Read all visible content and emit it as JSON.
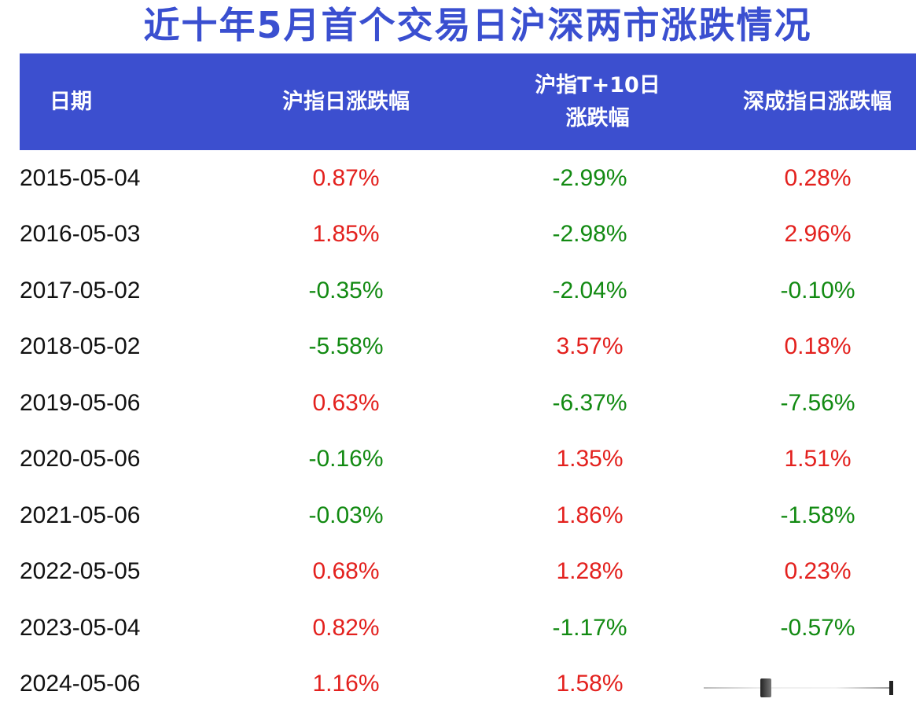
{
  "title": "近十年5月首个交易日沪深两市涨跌情况",
  "colors": {
    "header_bg": "#3c4fcf",
    "title": "#3a4fd0",
    "up": "#e3211e",
    "down": "#128a12"
  },
  "table": {
    "headers": {
      "date": "日期",
      "sh_day": "沪指日涨跌幅",
      "sh_t10_line1": "沪指T+10日",
      "sh_t10_line2": "涨跌幅",
      "sz_day": "深成指日涨跌幅"
    },
    "rows": [
      {
        "date": "2015-05-04",
        "sh": "0.87%",
        "t10": "-2.99%",
        "sz": "0.28%"
      },
      {
        "date": "2016-05-03",
        "sh": "1.85%",
        "t10": "-2.98%",
        "sz": "2.96%"
      },
      {
        "date": "2017-05-02",
        "sh": "-0.35%",
        "t10": "-2.04%",
        "sz": "-0.10%"
      },
      {
        "date": "2018-05-02",
        "sh": "-5.58%",
        "t10": "3.57%",
        "sz": "0.18%"
      },
      {
        "date": "2019-05-06",
        "sh": "0.63%",
        "t10": "-6.37%",
        "sz": "-7.56%"
      },
      {
        "date": "2020-05-06",
        "sh": "-0.16%",
        "t10": "1.35%",
        "sz": "1.51%"
      },
      {
        "date": "2021-05-06",
        "sh": "-0.03%",
        "t10": "1.86%",
        "sz": "-1.58%"
      },
      {
        "date": "2022-05-05",
        "sh": "0.68%",
        "t10": "1.28%",
        "sz": "0.23%"
      },
      {
        "date": "2023-05-04",
        "sh": "0.82%",
        "t10": "-1.17%",
        "sz": "-0.57%"
      },
      {
        "date": "2024-05-06",
        "sh": "1.16%",
        "t10": "1.58%",
        "sz": ""
      }
    ]
  }
}
